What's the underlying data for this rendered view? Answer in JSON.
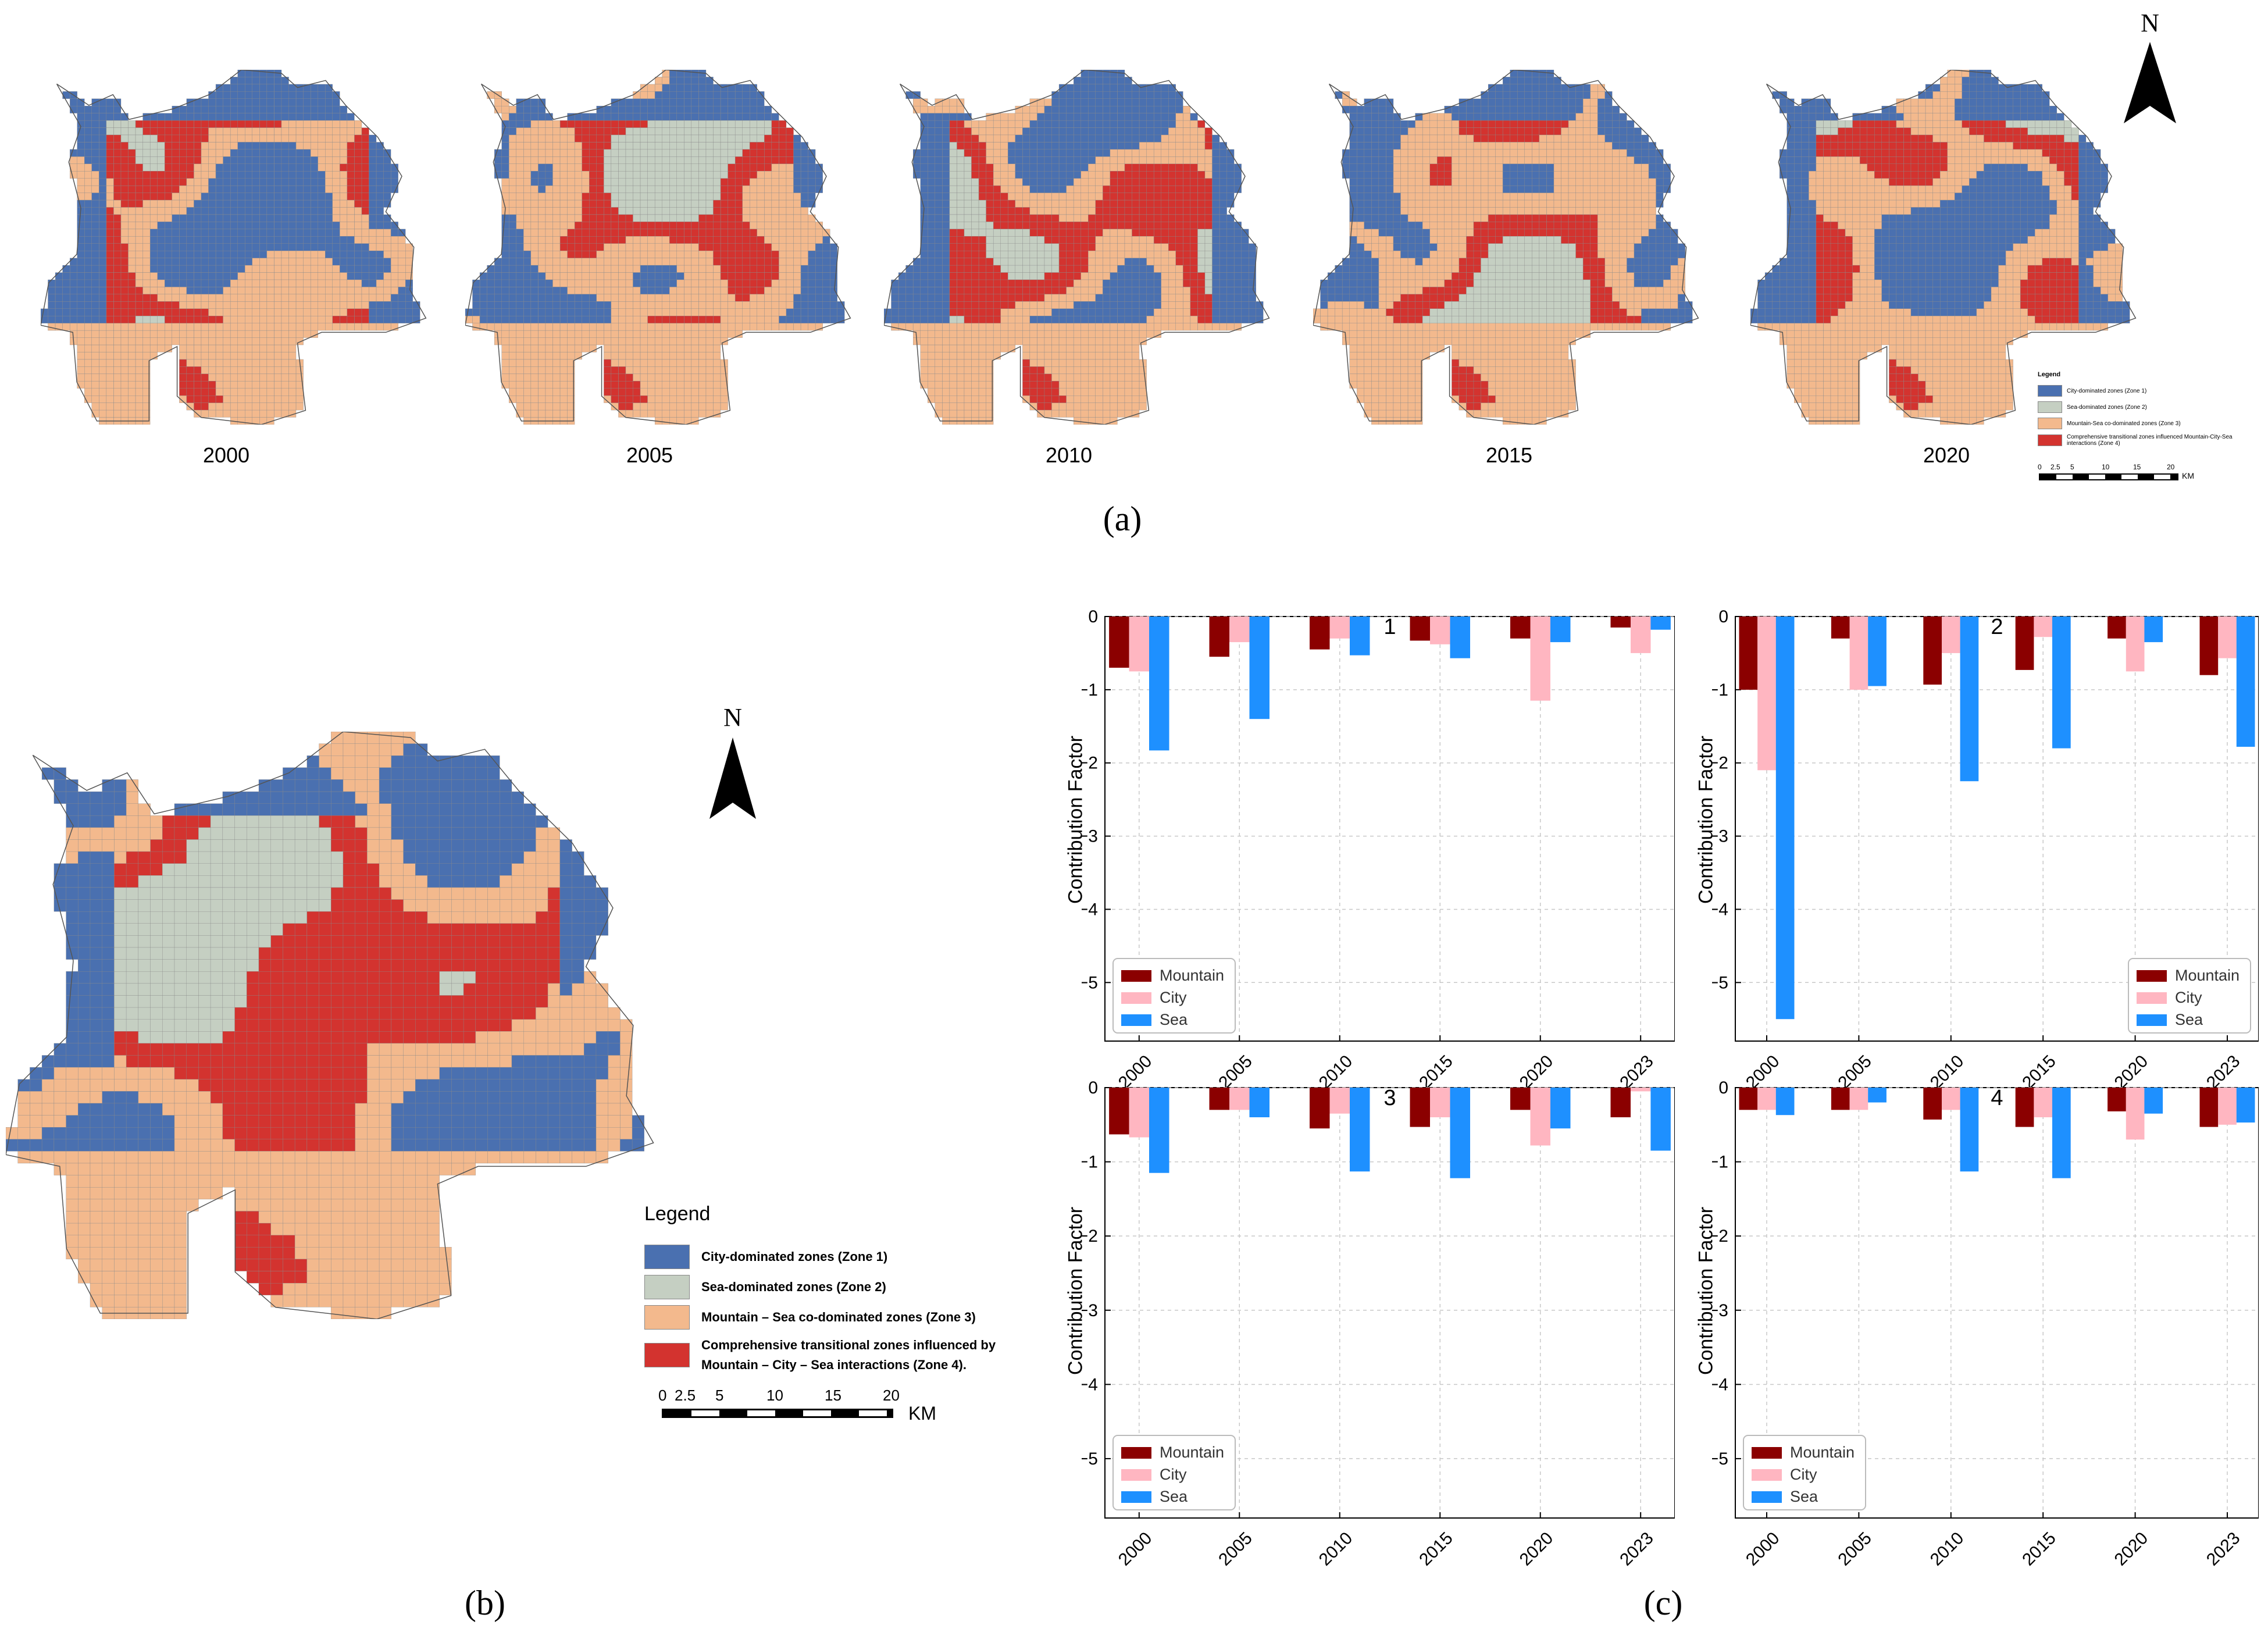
{
  "colors": {
    "zone1": "#4a70b0",
    "zone2": "#c5cfc2",
    "zone3": "#f3b98d",
    "zone4": "#d3332f",
    "mountain": "#8b0000",
    "city": "#ffb6c1",
    "sea": "#1e90ff"
  },
  "panel_a": {
    "label": "(a)",
    "years": [
      "2000",
      "2005",
      "2010",
      "2015",
      "2020"
    ],
    "north": "N",
    "legend": {
      "title": "Legend",
      "items": [
        "City-dominated zones (Zone 1)",
        "Sea-dominated zones (Zone 2)",
        "Mountain-Sea co-dominated zones (Zone 3)",
        "Comprehensive transitional zones influenced Mountain-City-Sea interactions (Zone 4)"
      ]
    },
    "scale_ticks": [
      "0",
      "2.5",
      "5",
      "10",
      "15",
      "20"
    ],
    "scale_unit": "KM"
  },
  "panel_b": {
    "label": "(b)",
    "north": "N",
    "legend": {
      "title": "Legend",
      "items": [
        "City-dominated zones (Zone 1)",
        "Sea-dominated zones (Zone 2)",
        "Mountain – Sea co-dominated zones (Zone 3)",
        "Comprehensive transitional zones influenced by Mountain – City – Sea interactions (Zone 4)."
      ]
    },
    "scale_ticks": [
      "0",
      "2.5",
      "5",
      "10",
      "15",
      "20"
    ],
    "scale_unit": "KM"
  },
  "panel_c": {
    "label": "(c)",
    "ylabel": "Contribution Factor",
    "legend": [
      "Mountain",
      "City",
      "Sea"
    ],
    "yticks": [
      "0",
      "−1",
      "−2",
      "−3",
      "−4",
      "−5"
    ],
    "chart_data": [
      {
        "type": "bar",
        "title": "1",
        "categories": [
          "2000",
          "2005",
          "2010",
          "2015",
          "2020",
          "2023"
        ],
        "ylabel": "Contribution Factor",
        "ylim": [
          -5.8,
          0
        ],
        "grid": true,
        "legend": "bottom-left",
        "series": [
          {
            "name": "Mountain",
            "values": [
              -0.7,
              -0.55,
              -0.45,
              -0.33,
              -0.3,
              -0.15
            ]
          },
          {
            "name": "City",
            "values": [
              -0.75,
              -0.35,
              -0.3,
              -0.38,
              -1.15,
              -0.5
            ]
          },
          {
            "name": "Sea",
            "values": [
              -1.83,
              -1.4,
              -0.53,
              -0.57,
              -0.35,
              -0.18
            ]
          }
        ]
      },
      {
        "type": "bar",
        "title": "2",
        "categories": [
          "2000",
          "2005",
          "2010",
          "2015",
          "2020",
          "2023"
        ],
        "ylabel": "Contribution Factor",
        "ylim": [
          -5.8,
          0
        ],
        "grid": true,
        "legend": "bottom-right",
        "series": [
          {
            "name": "Mountain",
            "values": [
              -1.0,
              -0.3,
              -0.93,
              -0.73,
              -0.3,
              -0.8
            ]
          },
          {
            "name": "City",
            "values": [
              -2.1,
              -1.0,
              -0.5,
              -0.28,
              -0.75,
              -0.57
            ]
          },
          {
            "name": "Sea",
            "values": [
              -5.5,
              -0.95,
              -2.25,
              -1.8,
              -0.35,
              -1.78
            ]
          }
        ]
      },
      {
        "type": "bar",
        "title": "3",
        "categories": [
          "2000",
          "2005",
          "2010",
          "2015",
          "2020",
          "2023"
        ],
        "ylabel": "Contribution Factor",
        "ylim": [
          -5.8,
          0
        ],
        "grid": true,
        "legend": "bottom-left",
        "series": [
          {
            "name": "Mountain",
            "values": [
              -0.63,
              -0.3,
              -0.55,
              -0.53,
              -0.3,
              -0.4
            ]
          },
          {
            "name": "City",
            "values": [
              -0.67,
              -0.3,
              -0.35,
              -0.4,
              -0.78,
              -0.05
            ]
          },
          {
            "name": "Sea",
            "values": [
              -1.15,
              -0.4,
              -1.13,
              -1.22,
              -0.55,
              -0.85
            ]
          }
        ]
      },
      {
        "type": "bar",
        "title": "4",
        "categories": [
          "2000",
          "2005",
          "2010",
          "2015",
          "2020",
          "2023"
        ],
        "ylabel": "Contribution Factor",
        "ylim": [
          -5.8,
          0
        ],
        "grid": true,
        "legend": "bottom-left",
        "series": [
          {
            "name": "Mountain",
            "values": [
              -0.3,
              -0.3,
              -0.43,
              -0.53,
              -0.32,
              -0.53
            ]
          },
          {
            "name": "City",
            "values": [
              -0.3,
              -0.3,
              -0.3,
              -0.4,
              -0.7,
              -0.5
            ]
          },
          {
            "name": "Sea",
            "values": [
              -0.37,
              -0.2,
              -1.13,
              -1.22,
              -0.35,
              -0.47
            ]
          }
        ]
      }
    ]
  }
}
